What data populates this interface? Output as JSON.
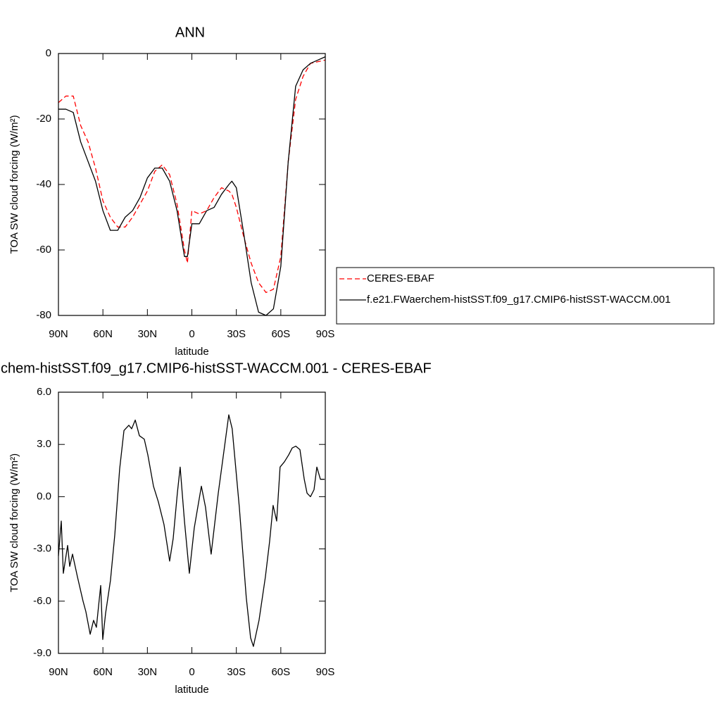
{
  "chart_data": [
    {
      "type": "line",
      "title": "ANN",
      "x_label": "latitude",
      "y_label": "TOA SW cloud forcing (W/m²)",
      "x": [
        90,
        85,
        80,
        75,
        70,
        65,
        60,
        55,
        50,
        45,
        40,
        35,
        30,
        25,
        20,
        15,
        10,
        5,
        3,
        0,
        -5,
        -10,
        -15,
        -20,
        -25,
        -27,
        -30,
        -35,
        -40,
        -45,
        -50,
        -55,
        -60,
        -65,
        -70,
        -75,
        -80,
        -85,
        -90
      ],
      "series": [
        {
          "name": "CERES-EBAF",
          "color": "#ff0000",
          "line_style": "dashed",
          "values": [
            -15,
            -13,
            -13,
            -22,
            -27,
            -35,
            -45,
            -50,
            -53,
            -53,
            -50,
            -46,
            -42,
            -36,
            -34,
            -37,
            -46,
            -60,
            -64,
            -48,
            -49,
            -48,
            -44,
            -41,
            -42,
            -43,
            -47,
            -56,
            -64,
            -70,
            -73,
            -72,
            -62,
            -33,
            -14,
            -7,
            -3,
            -2.5,
            -2
          ]
        },
        {
          "name": "f.e21.FWaerchem-histSST.f09_g17.CMIP6-histSST-WACCM.001",
          "color": "#000000",
          "line_style": "solid",
          "values": [
            -17,
            -17,
            -18,
            -27,
            -33,
            -39,
            -48,
            -54,
            -54,
            -50,
            -48,
            -44,
            -38,
            -35,
            -35,
            -39,
            -48,
            -62,
            -62,
            -52,
            -52,
            -48,
            -47,
            -43,
            -40,
            -39,
            -41,
            -55,
            -70,
            -79,
            -80,
            -78,
            -65,
            -33,
            -10,
            -5,
            -3,
            -2,
            -1
          ]
        }
      ],
      "xlim": [
        90,
        -90
      ],
      "xticks": [
        {
          "value": 90,
          "label": "90N"
        },
        {
          "value": 60,
          "label": "60N"
        },
        {
          "value": 30,
          "label": "30N"
        },
        0,
        {
          "value": -30,
          "label": "30S"
        },
        {
          "value": -60,
          "label": "60S"
        },
        {
          "value": -90,
          "label": "90S"
        }
      ],
      "ylim": [
        -80,
        0
      ],
      "yticks": [
        0,
        -20,
        -40,
        -60,
        -80
      ],
      "grid": false,
      "legend_position": "outside-right"
    },
    {
      "type": "line",
      "title": "chem-histSST.f09_g17.CMIP6-histSST-WACCM.001 - CERES-EBAF",
      "x_label": "latitude",
      "y_label": "TOA SW cloud forcing (W/m²)",
      "x": [
        90,
        88.1,
        86.7,
        83.8,
        82.4,
        80.5,
        77.2,
        73.4,
        71.5,
        68.6,
        66.3,
        64.4,
        61.5,
        60.1,
        58.2,
        54.9,
        52.0,
        48.7,
        45.8,
        42.5,
        40.6,
        38.2,
        35.4,
        32.1,
        29.7,
        25.9,
        22.6,
        18.8,
        15.0,
        12.6,
        9.8,
        7.9,
        5.0,
        1.7,
        -1.6,
        -6.4,
        -9.2,
        -13.0,
        -17.8,
        -21.6,
        -24.9,
        -27.2,
        -32.0,
        -36.7,
        -39.6,
        -41.5,
        -45.3,
        -49.6,
        -52.4,
        -54.8,
        -57.2,
        -59.5,
        -62.4,
        -65.3,
        -67.7,
        -70.1,
        -72.9,
        -75.8,
        -77.7,
        -80.0,
        -82.4,
        -84.3,
        -86.7,
        -89.5
      ],
      "series": [
        {
          "name": null,
          "color": "#000000",
          "line_style": "solid",
          "values": [
            -3.4,
            -1.4,
            -4.4,
            -2.8,
            -4.0,
            -3.3,
            -4.6,
            -6.0,
            -6.6,
            -7.9,
            -7.1,
            -7.5,
            -5.1,
            -8.2,
            -6.7,
            -4.8,
            -2.2,
            1.6,
            3.8,
            4.1,
            3.9,
            4.4,
            3.5,
            3.3,
            2.4,
            0.6,
            -0.3,
            -1.6,
            -3.7,
            -2.4,
            0.2,
            1.7,
            -1.4,
            -4.4,
            -1.8,
            0.6,
            -0.6,
            -3.3,
            0.2,
            2.6,
            4.7,
            3.9,
            -0.6,
            -5.8,
            -8.1,
            -8.6,
            -7.1,
            -4.6,
            -2.6,
            -0.5,
            -1.4,
            1.7,
            2.0,
            2.4,
            2.8,
            2.9,
            2.7,
            1.0,
            0.2,
            0.0,
            0.4,
            1.7,
            1.0,
            1.0
          ]
        }
      ],
      "xlim": [
        90,
        -90
      ],
      "xticks": [
        {
          "value": 90,
          "label": "90N"
        },
        {
          "value": 60,
          "label": "60N"
        },
        {
          "value": 30,
          "label": "30N"
        },
        0,
        {
          "value": -30,
          "label": "30S"
        },
        {
          "value": -60,
          "label": "60S"
        },
        {
          "value": -90,
          "label": "90S"
        }
      ],
      "ylim": [
        -9,
        6
      ],
      "yticks": [
        {
          "value": 6,
          "label": "6.0"
        },
        {
          "value": 3,
          "label": "3.0"
        },
        {
          "value": 0,
          "label": "0.0"
        },
        {
          "value": -3,
          "label": "-3.0"
        },
        {
          "value": -6,
          "label": "-6.0"
        },
        {
          "value": -9,
          "label": "-9.0"
        }
      ],
      "grid": false
    }
  ]
}
